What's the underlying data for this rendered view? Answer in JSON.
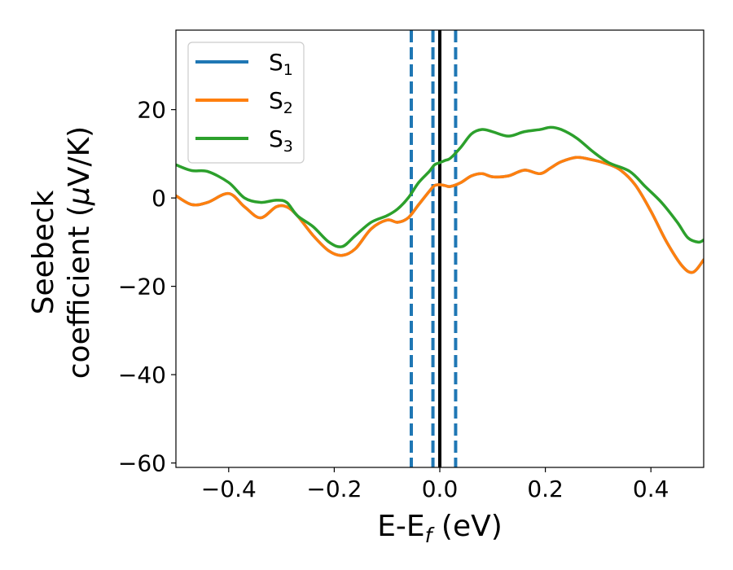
{
  "chart_data": {
    "type": "line",
    "xlabel": {
      "main": "E-E",
      "sub": "f",
      "unit": " (eV)"
    },
    "ylabel": {
      "line1": "Seebeck",
      "line2_prefix": "coefficient  (",
      "mu": "μ",
      "line2_suffix": "V/K)"
    },
    "xlim": [
      -0.5,
      0.5
    ],
    "ylim": [
      -61,
      38
    ],
    "x_ticks": [
      -0.4,
      -0.2,
      0.0,
      0.2,
      0.4
    ],
    "x_tick_labels": [
      "−0.4",
      "−0.2",
      "0.0",
      "0.2",
      "0.4"
    ],
    "y_ticks": [
      -60,
      -40,
      -20,
      0,
      20
    ],
    "y_tick_labels": [
      "−60",
      "−40",
      "−20",
      "0",
      "20"
    ],
    "grid": false,
    "legend_position": "top-left",
    "vertical_lines": [
      {
        "x": 0.0,
        "style": "solid",
        "color": "#000000"
      },
      {
        "x": -0.054,
        "style": "dashed",
        "color": "#1f77b4"
      },
      {
        "x": -0.013,
        "style": "dashed",
        "color": "#1f77b4"
      },
      {
        "x": 0.03,
        "style": "dashed",
        "color": "#1f77b4"
      }
    ],
    "series": [
      {
        "name": "S",
        "sub": "1",
        "color": "#1f77b4",
        "x": [
          -0.5,
          -0.47,
          -0.44,
          -0.4,
          -0.37,
          -0.34,
          -0.31,
          -0.29,
          -0.27,
          -0.24,
          -0.21,
          -0.185,
          -0.16,
          -0.13,
          -0.1,
          -0.08,
          -0.06,
          -0.04,
          -0.02,
          -0.01,
          0.0,
          0.01,
          0.02,
          0.04,
          0.06,
          0.08,
          0.1,
          0.13,
          0.16,
          0.19,
          0.21,
          0.23,
          0.26,
          0.29,
          0.31,
          0.34,
          0.37,
          0.4,
          0.43,
          0.46,
          0.48,
          0.5
        ],
        "y": [
          0.5,
          -1.5,
          -1.0,
          1.0,
          -2.0,
          -4.5,
          -2.0,
          -2.0,
          -4.0,
          -8.5,
          -12.0,
          -13.0,
          -11.5,
          -7.0,
          -5.0,
          -5.5,
          -4.5,
          -1.5,
          1.5,
          2.8,
          3.0,
          2.8,
          2.6,
          3.5,
          5.0,
          5.5,
          4.8,
          5.0,
          6.3,
          5.5,
          6.8,
          8.2,
          9.2,
          8.6,
          8.0,
          6.5,
          3.0,
          -3.0,
          -10.0,
          -15.5,
          -16.8,
          -14.0
        ]
      },
      {
        "name": "S",
        "sub": "2",
        "color": "#ff7f0e",
        "x": [
          -0.5,
          -0.47,
          -0.44,
          -0.4,
          -0.37,
          -0.34,
          -0.31,
          -0.29,
          -0.27,
          -0.24,
          -0.21,
          -0.185,
          -0.16,
          -0.13,
          -0.1,
          -0.08,
          -0.06,
          -0.04,
          -0.02,
          -0.01,
          0.0,
          0.01,
          0.02,
          0.04,
          0.06,
          0.08,
          0.1,
          0.13,
          0.16,
          0.19,
          0.21,
          0.23,
          0.26,
          0.29,
          0.31,
          0.34,
          0.37,
          0.4,
          0.43,
          0.46,
          0.48,
          0.5
        ],
        "y": [
          0.5,
          -1.5,
          -1.0,
          1.0,
          -2.0,
          -4.5,
          -2.0,
          -2.0,
          -4.0,
          -8.5,
          -12.0,
          -13.0,
          -11.5,
          -7.0,
          -5.0,
          -5.5,
          -4.5,
          -1.5,
          1.5,
          2.8,
          3.0,
          2.8,
          2.6,
          3.5,
          5.0,
          5.5,
          4.8,
          5.0,
          6.3,
          5.5,
          6.8,
          8.2,
          9.2,
          8.6,
          8.0,
          6.5,
          3.0,
          -3.0,
          -10.0,
          -15.5,
          -16.8,
          -14.0
        ]
      },
      {
        "name": "S",
        "sub": "3",
        "color": "#2ca02c",
        "x": [
          -0.5,
          -0.47,
          -0.44,
          -0.4,
          -0.37,
          -0.34,
          -0.31,
          -0.29,
          -0.27,
          -0.24,
          -0.21,
          -0.185,
          -0.16,
          -0.13,
          -0.1,
          -0.08,
          -0.06,
          -0.04,
          -0.02,
          -0.01,
          0.0,
          0.01,
          0.02,
          0.04,
          0.06,
          0.08,
          0.1,
          0.13,
          0.16,
          0.19,
          0.21,
          0.23,
          0.26,
          0.29,
          0.32,
          0.36,
          0.39,
          0.42,
          0.45,
          0.47,
          0.49,
          0.5
        ],
        "y": [
          7.5,
          6.2,
          6.0,
          3.5,
          0.0,
          -1.0,
          -0.5,
          -1.0,
          -4.0,
          -6.5,
          -10.0,
          -11.0,
          -8.5,
          -5.5,
          -4.0,
          -2.5,
          0.0,
          3.5,
          6.0,
          7.5,
          8.0,
          8.5,
          9.0,
          11.5,
          14.5,
          15.5,
          15.0,
          14.0,
          15.0,
          15.5,
          16.0,
          15.5,
          13.5,
          10.5,
          8.0,
          6.0,
          2.5,
          -1.0,
          -5.5,
          -9.0,
          -10.0,
          -9.5
        ]
      }
    ]
  }
}
